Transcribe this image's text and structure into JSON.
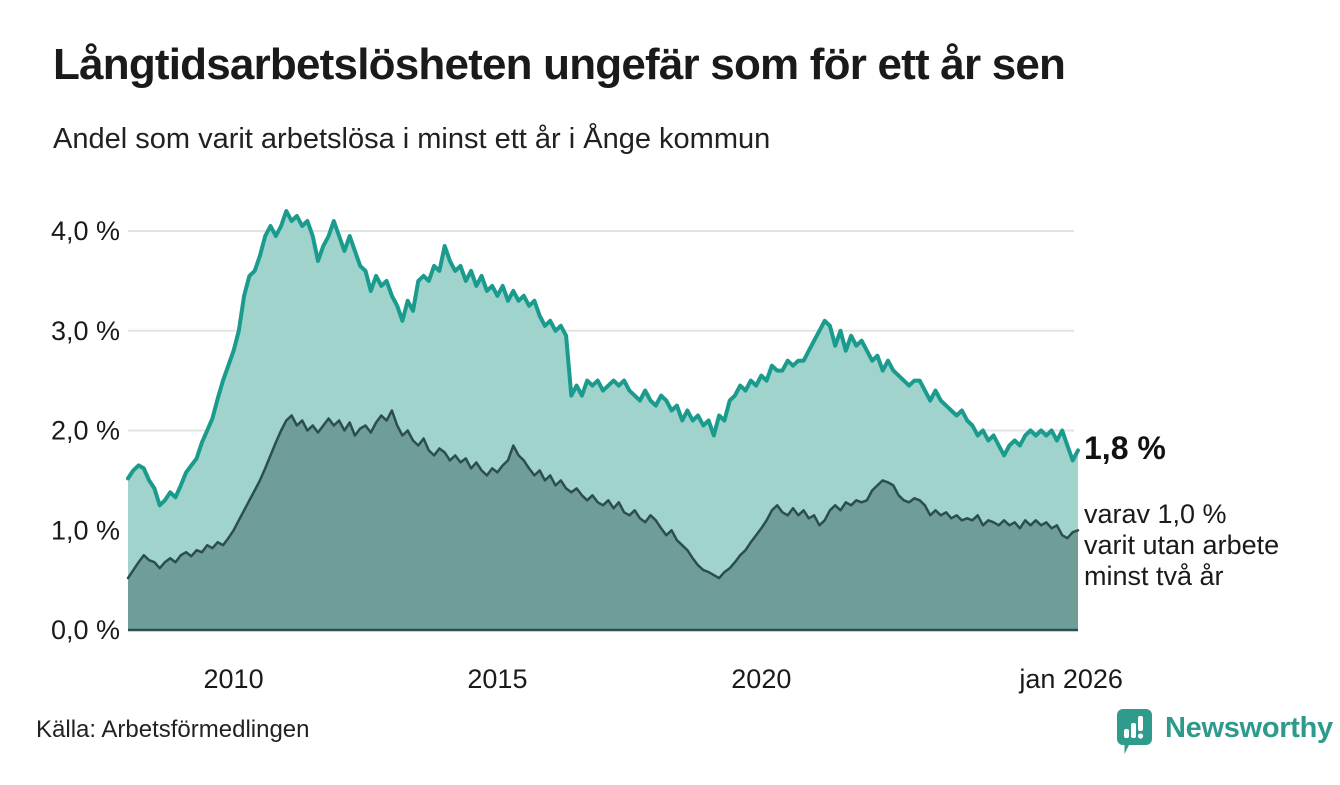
{
  "header": {
    "title": "Långtidsarbetslösheten ungefär som för ett år sen",
    "subtitle": "Andel som varit arbetslösa i minst ett år i Ånge kommun"
  },
  "annotation": {
    "value": "1,8 %",
    "note": "varav 1,0 %\nvarit utan arbete\nminst två år"
  },
  "footer": {
    "source": "Källa: Arbetsförmedlingen",
    "brand": "Newsworthy"
  },
  "colors": {
    "line_total": "#1a9b8d",
    "fill_total": "#9fd3cc",
    "line_subset": "#2c4f4d",
    "fill_subset": "#6f9d97",
    "gridline": "#e3e3e3",
    "axis_text": "#1a1a1a",
    "baseline": "#2c4f4d",
    "brand_teal": "#2e9a8c"
  },
  "chart_data": {
    "type": "area",
    "title": "Långtidsarbetslösheten ungefär som för ett år sen",
    "subtitle": "Andel som varit arbetslösa i minst ett år i Ånge kommun",
    "ylabel": "",
    "xlabel": "",
    "ylim": [
      0,
      4.4
    ],
    "xlim": [
      2008.0,
      2026.0
    ],
    "grid": true,
    "y_ticks": [
      {
        "v": 0,
        "label": "0,0 %"
      },
      {
        "v": 1,
        "label": "1,0 %"
      },
      {
        "v": 2,
        "label": "2,0 %"
      },
      {
        "v": 3,
        "label": "3,0 %"
      },
      {
        "v": 4,
        "label": "4,0 %"
      }
    ],
    "x_ticks": [
      {
        "year": 2010,
        "label": "2010"
      },
      {
        "year": 2015,
        "label": "2015"
      },
      {
        "year": 2020,
        "label": "2020"
      },
      {
        "year": 2025.87,
        "label": "jan 2026"
      }
    ],
    "x_start": 2008.0,
    "x_step": 0.1,
    "series": [
      {
        "name": "arbetslösa minst ett år",
        "end_label": "1,8 %",
        "values": [
          1.52,
          1.6,
          1.65,
          1.62,
          1.5,
          1.42,
          1.25,
          1.3,
          1.38,
          1.33,
          1.45,
          1.58,
          1.65,
          1.72,
          1.88,
          2.0,
          2.12,
          2.32,
          2.5,
          2.65,
          2.8,
          3.0,
          3.35,
          3.55,
          3.6,
          3.75,
          3.95,
          4.05,
          3.95,
          4.05,
          4.2,
          4.1,
          4.15,
          4.05,
          4.1,
          3.95,
          3.7,
          3.85,
          3.95,
          4.1,
          3.95,
          3.8,
          3.95,
          3.8,
          3.65,
          3.6,
          3.4,
          3.55,
          3.45,
          3.5,
          3.35,
          3.25,
          3.1,
          3.3,
          3.2,
          3.5,
          3.55,
          3.5,
          3.65,
          3.6,
          3.85,
          3.7,
          3.6,
          3.65,
          3.5,
          3.6,
          3.45,
          3.55,
          3.4,
          3.45,
          3.35,
          3.45,
          3.3,
          3.4,
          3.3,
          3.35,
          3.25,
          3.3,
          3.15,
          3.05,
          3.1,
          3.0,
          3.05,
          2.95,
          2.35,
          2.45,
          2.35,
          2.5,
          2.45,
          2.5,
          2.4,
          2.45,
          2.5,
          2.45,
          2.5,
          2.4,
          2.35,
          2.3,
          2.4,
          2.3,
          2.25,
          2.35,
          2.3,
          2.2,
          2.25,
          2.1,
          2.2,
          2.1,
          2.15,
          2.05,
          2.1,
          1.95,
          2.15,
          2.1,
          2.3,
          2.35,
          2.45,
          2.4,
          2.5,
          2.45,
          2.55,
          2.5,
          2.65,
          2.6,
          2.6,
          2.7,
          2.65,
          2.7,
          2.7,
          2.8,
          2.9,
          3.0,
          3.1,
          3.05,
          2.85,
          3.0,
          2.8,
          2.95,
          2.85,
          2.9,
          2.8,
          2.7,
          2.75,
          2.6,
          2.7,
          2.6,
          2.55,
          2.5,
          2.45,
          2.5,
          2.5,
          2.4,
          2.3,
          2.4,
          2.3,
          2.25,
          2.2,
          2.15,
          2.2,
          2.1,
          2.05,
          1.95,
          2.0,
          1.9,
          1.95,
          1.85,
          1.75,
          1.85,
          1.9,
          1.85,
          1.95,
          2.0,
          1.95,
          2.0,
          1.95,
          2.0,
          1.9,
          2.0,
          1.85,
          1.7,
          1.8
        ]
      },
      {
        "name": "arbetslösa minst två år",
        "end_label": "varav 1,0 % varit utan arbete minst två år",
        "values": [
          0.52,
          0.6,
          0.68,
          0.75,
          0.7,
          0.68,
          0.62,
          0.68,
          0.72,
          0.68,
          0.75,
          0.78,
          0.74,
          0.8,
          0.78,
          0.85,
          0.82,
          0.88,
          0.85,
          0.92,
          1.0,
          1.1,
          1.2,
          1.3,
          1.4,
          1.5,
          1.62,
          1.75,
          1.88,
          2.0,
          2.1,
          2.15,
          2.05,
          2.1,
          2.0,
          2.05,
          1.98,
          2.05,
          2.12,
          2.05,
          2.1,
          2.0,
          2.08,
          1.95,
          2.02,
          2.05,
          1.98,
          2.08,
          2.15,
          2.1,
          2.2,
          2.05,
          1.95,
          2.0,
          1.9,
          1.85,
          1.92,
          1.8,
          1.75,
          1.82,
          1.78,
          1.7,
          1.75,
          1.68,
          1.72,
          1.62,
          1.68,
          1.6,
          1.55,
          1.62,
          1.58,
          1.65,
          1.7,
          1.85,
          1.75,
          1.7,
          1.62,
          1.55,
          1.6,
          1.5,
          1.55,
          1.45,
          1.5,
          1.42,
          1.38,
          1.42,
          1.35,
          1.3,
          1.35,
          1.28,
          1.25,
          1.3,
          1.22,
          1.28,
          1.18,
          1.15,
          1.2,
          1.12,
          1.08,
          1.15,
          1.1,
          1.02,
          0.95,
          1.0,
          0.9,
          0.85,
          0.8,
          0.72,
          0.65,
          0.6,
          0.58,
          0.55,
          0.52,
          0.58,
          0.62,
          0.68,
          0.75,
          0.8,
          0.88,
          0.95,
          1.02,
          1.1,
          1.2,
          1.25,
          1.18,
          1.15,
          1.22,
          1.15,
          1.2,
          1.12,
          1.15,
          1.05,
          1.1,
          1.2,
          1.25,
          1.2,
          1.28,
          1.25,
          1.3,
          1.28,
          1.3,
          1.4,
          1.45,
          1.5,
          1.48,
          1.45,
          1.35,
          1.3,
          1.28,
          1.32,
          1.3,
          1.25,
          1.15,
          1.2,
          1.15,
          1.18,
          1.12,
          1.15,
          1.1,
          1.12,
          1.1,
          1.15,
          1.05,
          1.1,
          1.08,
          1.05,
          1.1,
          1.05,
          1.08,
          1.02,
          1.1,
          1.05,
          1.1,
          1.05,
          1.08,
          1.02,
          1.05,
          0.95,
          0.92,
          0.98,
          1.0
        ]
      }
    ],
    "legend": "none"
  }
}
